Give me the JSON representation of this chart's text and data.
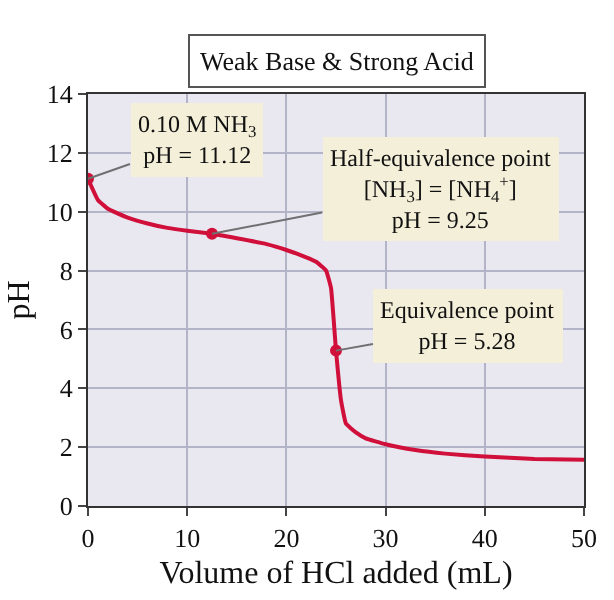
{
  "chart_data": {
    "type": "line",
    "title": "Weak Base & Strong Acid",
    "xlabel": "Volume of HCl added (mL)",
    "ylabel": "pH",
    "xlim": [
      0,
      50
    ],
    "xticks": [
      0,
      10,
      20,
      30,
      40,
      50
    ],
    "ylim": [
      0,
      14
    ],
    "yticks": [
      0,
      2,
      4,
      6,
      8,
      10,
      12,
      14
    ],
    "grid": true,
    "series": [
      {
        "color": "#d0103a",
        "marker": "none",
        "x": [
          0,
          1,
          2,
          4,
          6,
          8,
          10,
          12.5,
          15,
          18,
          20,
          22,
          23,
          24,
          24.5,
          25,
          25.5,
          26,
          27,
          28,
          30,
          33,
          36,
          40,
          45,
          50
        ],
        "values": [
          11.12,
          10.4,
          10.1,
          9.8,
          9.6,
          9.45,
          9.35,
          9.25,
          9.1,
          8.9,
          8.7,
          8.45,
          8.3,
          8.0,
          7.4,
          5.28,
          3.6,
          2.8,
          2.5,
          2.3,
          2.1,
          1.9,
          1.78,
          1.68,
          1.6,
          1.57
        ]
      },
      {
        "type": "scatter",
        "color": "#d0103a",
        "marker": "circle",
        "x": [
          0,
          12.5,
          25
        ],
        "values": [
          11.12,
          9.25,
          5.28
        ]
      }
    ],
    "annotations": [
      {
        "text": "0.10 M NH$_{3}$\npH = 11.12",
        "x": 0,
        "y": 11.12
      },
      {
        "text": "Half-equivalence point\n[NH$_{3}$] = [NH$_{4}$$^{+}$]\npH = 9.25",
        "x": 12.5,
        "y": 9.25
      },
      {
        "text": "Equivalence point\npH = 5.28",
        "x": 25,
        "y": 5.28
      }
    ]
  }
}
